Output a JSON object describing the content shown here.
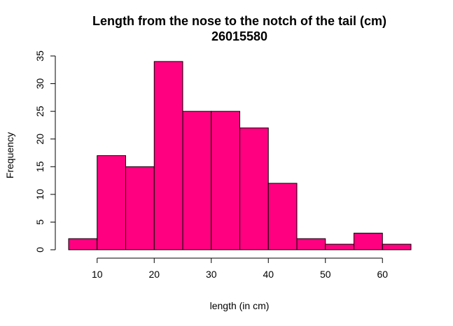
{
  "chart_data": {
    "type": "bar",
    "title": "Length from the nose to the notch of the tail (cm)",
    "subtitle": "26015580",
    "xlabel": "length (in cm)",
    "ylabel": "Frequency",
    "bins": [
      [
        5,
        10
      ],
      [
        10,
        15
      ],
      [
        15,
        20
      ],
      [
        20,
        25
      ],
      [
        25,
        30
      ],
      [
        30,
        35
      ],
      [
        35,
        40
      ],
      [
        40,
        45
      ],
      [
        45,
        50
      ],
      [
        50,
        55
      ],
      [
        55,
        60
      ],
      [
        60,
        65
      ]
    ],
    "values": [
      2,
      17,
      15,
      34,
      25,
      25,
      22,
      12,
      2,
      1,
      3,
      1
    ],
    "xlim": [
      5,
      65
    ],
    "ylim": [
      0,
      35
    ],
    "x_ticks": [
      10,
      20,
      30,
      40,
      50,
      60
    ],
    "y_ticks": [
      0,
      5,
      10,
      15,
      20,
      25,
      30,
      35
    ],
    "bar_color": "#FF0080",
    "grid": false
  }
}
